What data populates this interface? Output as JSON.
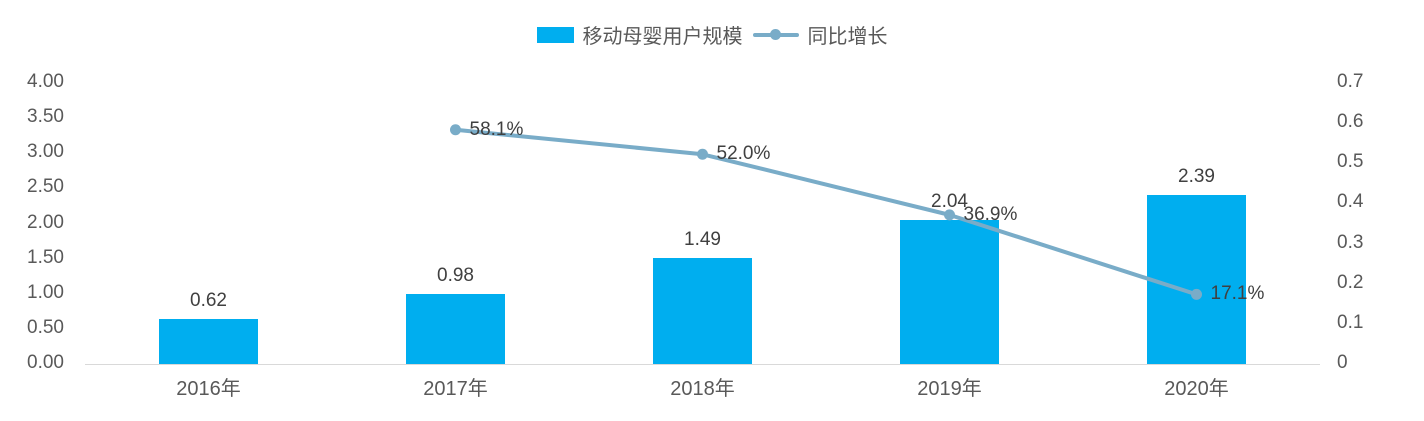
{
  "chart_data": {
    "type": "bar+line combo",
    "categories": [
      "2016年",
      "2017年",
      "2018年",
      "2019年",
      "2020年"
    ],
    "series": [
      {
        "name": "移动母婴用户规模",
        "type": "bar",
        "axis": "left",
        "values": [
          0.62,
          0.98,
          1.49,
          2.04,
          2.39
        ],
        "labels": [
          "0.62",
          "0.98",
          "1.49",
          "2.04",
          "2.39"
        ],
        "color": "#00AEEF"
      },
      {
        "name": "同比增长",
        "type": "line",
        "axis": "right",
        "values": [
          null,
          0.581,
          0.52,
          0.369,
          0.171
        ],
        "labels": [
          "",
          "58.1%",
          "52.0%",
          "36.9%",
          "17.1%"
        ],
        "color": "#79ACC8"
      }
    ],
    "left_axis": {
      "min": 0,
      "max": 4,
      "step": 0.5,
      "ticks": [
        "0.00",
        "0.50",
        "1.00",
        "1.50",
        "2.00",
        "2.50",
        "3.00",
        "3.50",
        "4.00"
      ]
    },
    "right_axis": {
      "min": 0,
      "max": 0.7,
      "step": 0.1,
      "ticks": [
        "0",
        "0.1",
        "0.2",
        "0.3",
        "0.4",
        "0.5",
        "0.6",
        "0.7"
      ]
    },
    "title": "",
    "legend_position": "top-center",
    "grid": false,
    "text_color": "#595959",
    "axis_line_color": "#d9d9d9"
  }
}
